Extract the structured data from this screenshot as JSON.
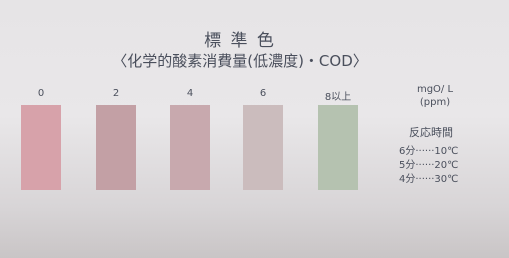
{
  "title": "標 準 色",
  "subtitle": "〈化学的酸素消費量(低濃度)・COD〉",
  "swatches": [
    {
      "label": "0",
      "color": "#d7a2aa"
    },
    {
      "label": "2",
      "color": "#c3a0a5"
    },
    {
      "label": "4",
      "color": "#c8a9ae"
    },
    {
      "label": "6",
      "color": "#cbbcbd"
    },
    {
      "label": "8以上",
      "color": "#b5c2b0"
    }
  ],
  "unit": {
    "line1": "mgO/ L",
    "line2": "(ppm)"
  },
  "reaction": {
    "heading": "反応時間",
    "rows": [
      "6分······10℃",
      "5分······20℃",
      "4分······30℃"
    ]
  }
}
